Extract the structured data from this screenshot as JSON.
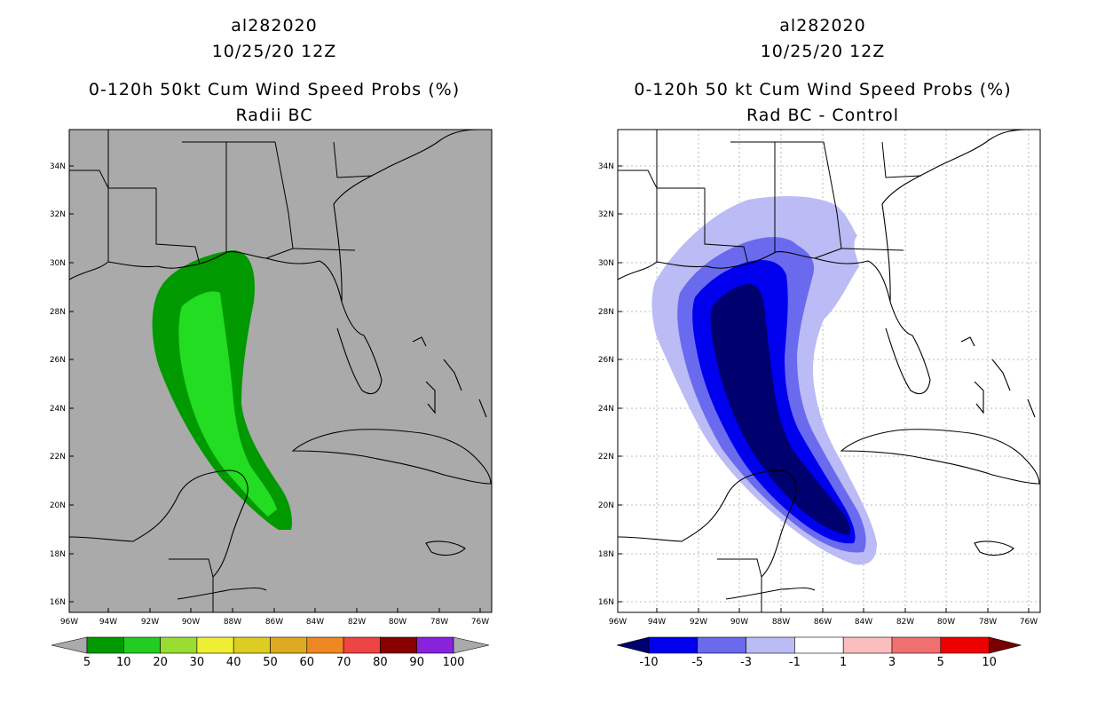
{
  "left": {
    "storm_id": "al282020",
    "date": "10/25/20 12Z",
    "title": "0-120h 50kt Cum Wind Speed Probs (%)",
    "subtitle": "Radii BC",
    "colorbar": {
      "labels": [
        "5",
        "10",
        "20",
        "30",
        "40",
        "50",
        "60",
        "70",
        "80",
        "90",
        "100"
      ],
      "colors": [
        "#009900",
        "#22cc22",
        "#99dd33",
        "#eeee33",
        "#ddcc22",
        "#ddaa22",
        "#ee8822",
        "#ee4444",
        "#880000",
        "#8822dd"
      ]
    }
  },
  "right": {
    "storm_id": "al282020",
    "date": "10/25/20 12Z",
    "title": "0-120h 50 kt Cum Wind Speed Probs (%)",
    "subtitle": "Rad BC - Control",
    "colorbar": {
      "labels": [
        "-10",
        "-5",
        "-3",
        "-1",
        "1",
        "3",
        "5",
        "10"
      ],
      "colors": [
        "#00006e",
        "#0000ee",
        "#6a6aee",
        "#bbbbf5",
        "#ffffff",
        "#fabebe",
        "#f07070",
        "#ee0000",
        "#770000"
      ]
    }
  },
  "axes": {
    "lat_labels": [
      "34N",
      "32N",
      "30N",
      "28N",
      "26N",
      "24N",
      "22N",
      "20N",
      "18N",
      "16N"
    ],
    "lon_labels": [
      "96W",
      "94W",
      "92W",
      "90W",
      "88W",
      "86W",
      "84W",
      "82W",
      "80W",
      "78W",
      "76W"
    ]
  },
  "colors": {
    "land_bg": "#aaaaaa",
    "prob_outer": "#009900",
    "prob_inner": "#22dd22",
    "diff_light": "#bbbbf5",
    "diff_mid": "#6a6aee",
    "diff_strong": "#0000ee",
    "diff_darkest": "#00006e"
  }
}
